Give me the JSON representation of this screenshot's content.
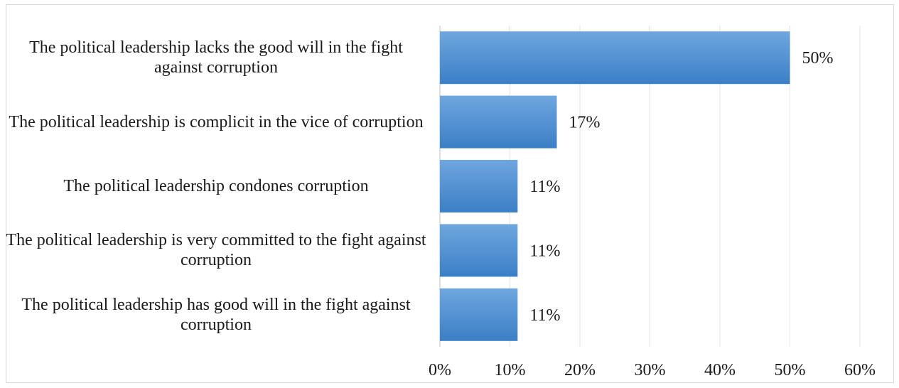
{
  "chart_data": {
    "type": "bar",
    "orientation": "horizontal",
    "categories": [
      "The political leadership lacks the good will in the fight against corruption",
      "The political leadership is complicit in the vice of corruption",
      "The political leadership condones corruption",
      "The political leadership is very committed to the fight against corruption",
      "The political leadership has good will in the fight against corruption"
    ],
    "values": [
      50,
      17,
      11,
      11,
      11
    ],
    "bar_lengths": [
      50,
      16.7,
      11.1,
      11.1,
      11.1
    ],
    "data_labels": [
      "50%",
      "17%",
      "11%",
      "11%",
      "11%"
    ],
    "xlim": [
      0,
      60
    ],
    "xticks": [
      "0%",
      "10%",
      "20%",
      "30%",
      "40%",
      "50%",
      "60%"
    ],
    "title": "",
    "xlabel": "",
    "ylabel": "",
    "grid": "vertical",
    "legend": "none",
    "colors": {
      "bar_top": "#6fa6df",
      "bar_bottom": "#3b7fc6",
      "grid": "#e3e3e3",
      "axis": "#bfbfbf",
      "text": "#1a1a1a"
    }
  }
}
